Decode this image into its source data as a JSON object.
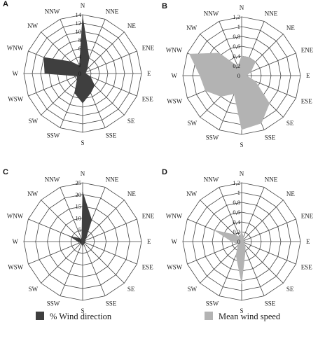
{
  "directions": [
    "N",
    "NNE",
    "NE",
    "ENE",
    "E",
    "ESE",
    "SE",
    "SSE",
    "S",
    "SSW",
    "SW",
    "WSW",
    "W",
    "WNW",
    "NW",
    "NNW"
  ],
  "legend": [
    {
      "label": "% Wind direction",
      "color": "#3f3f3f"
    },
    {
      "label": "Mean wind speed",
      "color": "#b3b3b3"
    }
  ],
  "chart_data": [
    {
      "type": "radar",
      "panel": "A",
      "categories": [
        "N",
        "NNE",
        "NE",
        "ENE",
        "E",
        "ESE",
        "SE",
        "SSE",
        "S",
        "SSW",
        "SW",
        "WSW",
        "W",
        "WNW",
        "NW",
        "NNW"
      ],
      "rmax": 14,
      "ticks": [
        0,
        2,
        4,
        6,
        8,
        10,
        12,
        14
      ],
      "tick_labels": [
        "0",
        "2",
        "4",
        "6",
        "8",
        "10",
        "12",
        "14"
      ],
      "series": [
        {
          "name": "% Wind direction",
          "color": "#3f3f3f",
          "values": [
            13.5,
            4,
            1.5,
            0.8,
            0.7,
            2,
            4,
            5,
            7,
            5,
            1.8,
            1.5,
            9,
            10,
            4,
            2
          ]
        }
      ]
    },
    {
      "type": "radar",
      "panel": "B",
      "categories": [
        "N",
        "NNE",
        "NE",
        "ENE",
        "E",
        "ESE",
        "SE",
        "SSE",
        "S",
        "SSW",
        "SW",
        "WSW",
        "W",
        "WNW",
        "NW",
        "NNW"
      ],
      "rmax": 1.2,
      "ticks": [
        0,
        0.2,
        0.4,
        0.6,
        0.8,
        1,
        1.2
      ],
      "tick_labels": [
        "0",
        "0,2",
        "0,4",
        "0,6",
        "0,8",
        "1",
        "1,2"
      ],
      "series": [
        {
          "name": "Mean wind speed",
          "color": "#b3b3b3",
          "values": [
            0.4,
            0.4,
            0.4,
            0.2,
            0.1,
            0.3,
            0.8,
            1.05,
            1.1,
            0.4,
            0.6,
            0.8,
            0.85,
            1.15,
            0.65,
            0.2
          ]
        }
      ]
    },
    {
      "type": "radar",
      "panel": "C",
      "categories": [
        "N",
        "NNE",
        "NE",
        "ENE",
        "E",
        "ESE",
        "SE",
        "SSE",
        "S",
        "SSW",
        "SW",
        "WSW",
        "W",
        "WNW",
        "NW",
        "NNW"
      ],
      "rmax": 25,
      "ticks": [
        0,
        5,
        10,
        15,
        20,
        25
      ],
      "tick_labels": [
        "0",
        "5",
        "10",
        "15",
        "20",
        "25"
      ],
      "series": [
        {
          "name": "% Wind direction",
          "color": "#3f3f3f",
          "values": [
            21,
            10,
            2,
            1,
            1,
            1,
            1,
            1,
            2,
            1,
            1,
            1,
            2,
            6,
            2,
            1
          ]
        }
      ]
    },
    {
      "type": "radar",
      "panel": "D",
      "categories": [
        "N",
        "NNE",
        "NE",
        "ENE",
        "E",
        "ESE",
        "SE",
        "SSE",
        "S",
        "SSW",
        "SW",
        "WSW",
        "W",
        "WNW",
        "NW",
        "NNW"
      ],
      "rmax": 1.2,
      "ticks": [
        0,
        0.2,
        0.4,
        0.6,
        0.8,
        1,
        1.2
      ],
      "tick_labels": [
        "0",
        "0,2",
        "0,4",
        "0,6",
        "0,8",
        "1",
        "1,2"
      ],
      "series": [
        {
          "name": "Mean wind speed",
          "color": "#b3b3b3",
          "values": [
            0.2,
            0.1,
            0.05,
            0.05,
            0.05,
            0.05,
            0.1,
            0.2,
            0.85,
            0.3,
            0.1,
            0.1,
            0.2,
            0.6,
            0.2,
            0.1
          ]
        }
      ]
    }
  ]
}
